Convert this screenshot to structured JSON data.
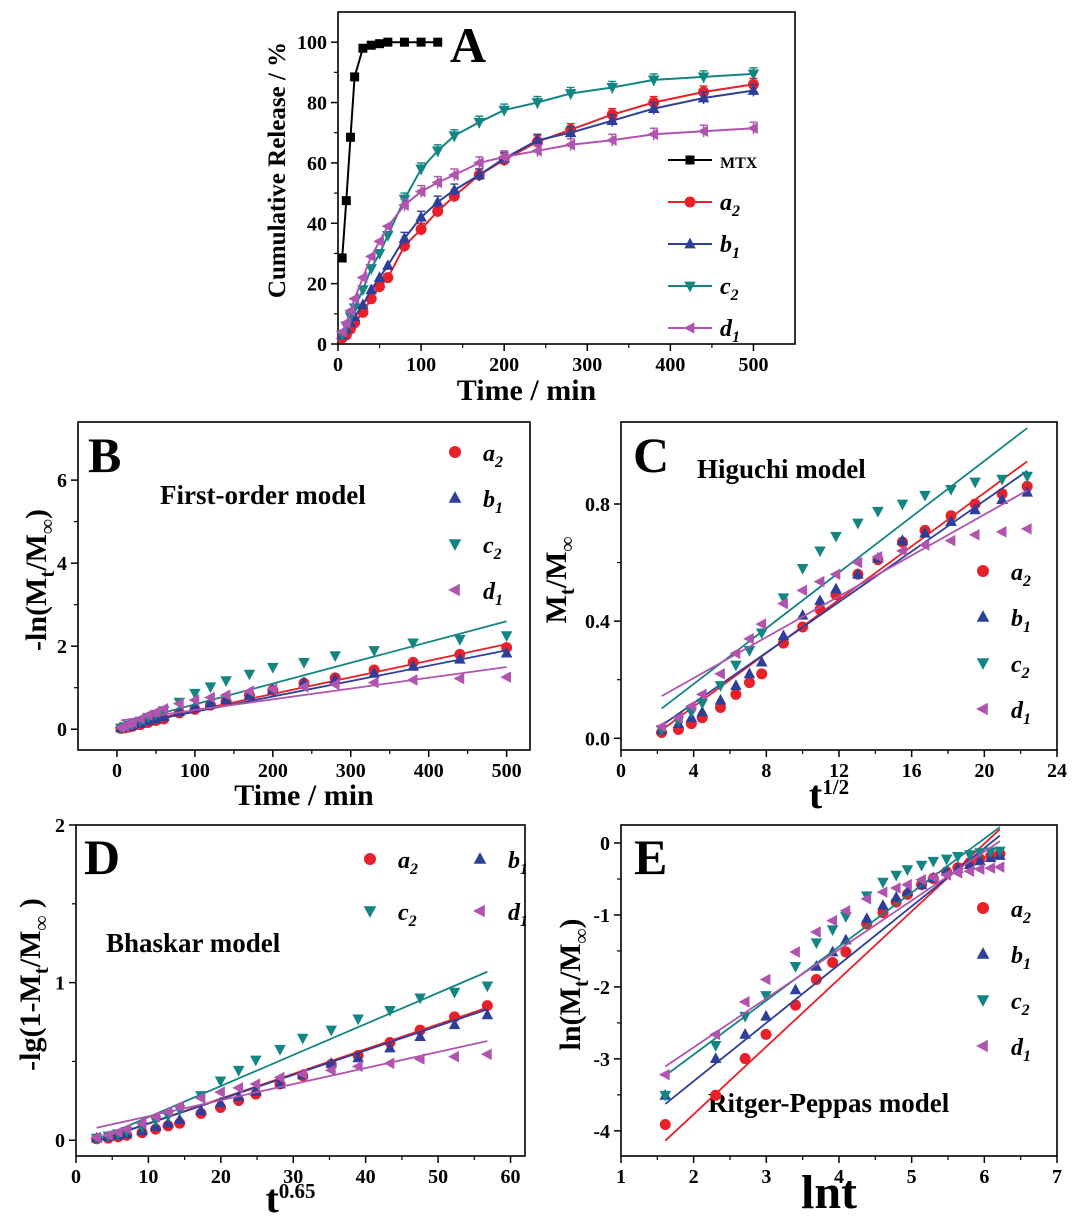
{
  "figure": {
    "colors": {
      "MTX": "#000000",
      "a2": "#e8202a",
      "b1": "#2e3f9a",
      "c2": "#138582",
      "d1": "#b054b0"
    }
  },
  "chart_data": [
    {
      "panel": "A",
      "type": "line",
      "xlabel": "Time / min",
      "ylabel": "Cumulative  Release / %",
      "xlim": [
        0,
        550
      ],
      "ylim": [
        0,
        110
      ],
      "xticks": [
        0,
        100,
        200,
        300,
        400,
        500
      ],
      "yticks": [
        0,
        20,
        40,
        60,
        80,
        100
      ],
      "legend_position": "right",
      "series": [
        {
          "key": "MTX",
          "label": "MTX",
          "sub": "",
          "marker": "square",
          "x": [
            5,
            10,
            15,
            20,
            30,
            40,
            50,
            60,
            80,
            100,
            120
          ],
          "y": [
            28.5,
            47.5,
            68.5,
            88.5,
            98,
            99,
            99.5,
            100,
            100,
            100,
            100
          ]
        },
        {
          "key": "a2",
          "label": "a",
          "sub": "2",
          "marker": "circle",
          "x": [
            5,
            10,
            15,
            20,
            30,
            40,
            50,
            60,
            80,
            100,
            120,
            140,
            170,
            200,
            240,
            280,
            330,
            380,
            440,
            500
          ],
          "y": [
            2,
            3,
            5,
            7,
            10.5,
            15,
            19,
            22,
            32.5,
            38,
            44,
            49,
            56,
            61,
            67,
            71,
            76,
            80,
            83.5,
            86
          ]
        },
        {
          "key": "b1",
          "label": "b",
          "sub": "1",
          "marker": "triangle-up",
          "x": [
            5,
            10,
            15,
            20,
            30,
            40,
            50,
            60,
            80,
            100,
            120,
            140,
            170,
            200,
            240,
            280,
            330,
            380,
            440,
            500
          ],
          "y": [
            3,
            5,
            7,
            9,
            13,
            18,
            22,
            26,
            35,
            42,
            47,
            51,
            56,
            61.5,
            67.5,
            70,
            74,
            78,
            81.5,
            84
          ]
        },
        {
          "key": "c2",
          "label": "c",
          "sub": "2",
          "marker": "triangle-down",
          "x": [
            5,
            10,
            15,
            20,
            30,
            40,
            50,
            60,
            80,
            100,
            120,
            140,
            170,
            200,
            240,
            280,
            330,
            380,
            440,
            500
          ],
          "y": [
            3,
            6,
            9,
            12,
            18,
            25,
            30,
            36,
            48,
            58,
            64,
            69,
            73.5,
            77.5,
            80,
            83,
            85,
            87.5,
            88.5,
            89.5
          ]
        },
        {
          "key": "d1",
          "label": "d",
          "sub": "1",
          "marker": "triangle-left",
          "x": [
            5,
            10,
            15,
            20,
            30,
            40,
            50,
            60,
            80,
            100,
            120,
            140,
            170,
            200,
            240,
            280,
            330,
            380,
            440,
            500
          ],
          "y": [
            4,
            7,
            11,
            15,
            22,
            29,
            34,
            39,
            46,
            50.5,
            53.5,
            56,
            60,
            62,
            64,
            66,
            67.5,
            69.5,
            70.5,
            71.5
          ]
        }
      ]
    },
    {
      "panel": "B",
      "type": "scatter",
      "title": "First-order model",
      "xlabel": "Time / min",
      "ylabel": "-ln(M_t/M_∞)",
      "xlim": [
        -50,
        530
      ],
      "ylim": [
        -0.5,
        7.4
      ],
      "xticks": [
        0,
        100,
        200,
        300,
        400,
        500
      ],
      "yticks": [
        0,
        2,
        4,
        6
      ],
      "legend_position": "top-right",
      "fits": {
        "a2": [
          0.05,
          0.004
        ],
        "b1": [
          0.05,
          0.0037
        ],
        "c2": [
          0.1,
          0.005
        ],
        "d1": [
          0.2,
          0.0026
        ]
      }
    },
    {
      "panel": "C",
      "type": "scatter",
      "title": "Higuchi model",
      "xlabel": "t^1/2",
      "ylabel": "M_t/M_∞",
      "xlim": [
        0,
        24
      ],
      "ylim": [
        -0.04,
        1.08
      ],
      "xticks": [
        0,
        4,
        8,
        12,
        16,
        20,
        24
      ],
      "yticks": [
        0.0,
        0.4,
        0.8
      ],
      "legend_position": "right",
      "fits": {
        "a2": [
          -0.074,
          0.0456
        ],
        "b1": [
          -0.053,
          0.0432
        ],
        "c2": [
          -0.005,
          0.0476
        ],
        "d1": [
          0.066,
          0.0349
        ]
      }
    },
    {
      "panel": "D",
      "type": "scatter",
      "title": "Bhaskar model",
      "xlabel": "t^0.65",
      "ylabel": "-lg(1-M_t/M_∞ )",
      "xlim": [
        0,
        62
      ],
      "ylim": [
        -0.1,
        2
      ],
      "xticks": [
        0,
        10,
        20,
        30,
        40,
        50,
        60
      ],
      "yticks": [
        0,
        1,
        2
      ],
      "legend_position": "top-right",
      "fits": {
        "a2": [
          -0.05,
          0.0157
        ],
        "b1": [
          -0.05,
          0.0155
        ],
        "c2": [
          -0.05,
          0.0197
        ],
        "d1": [
          0.05,
          0.0102
        ]
      }
    },
    {
      "panel": "E",
      "type": "scatter",
      "title": "Ritger-Peppas model",
      "xlabel": "lnt",
      "ylabel": "ln(M_t/M_∞)",
      "xlim": [
        1,
        7
      ],
      "ylim": [
        -4.35,
        0.25
      ],
      "xticks": [
        1,
        2,
        3,
        4,
        5,
        6,
        7
      ],
      "yticks": [
        -4,
        -3,
        -2,
        -1,
        0
      ],
      "legend_position": "right",
      "fits": {
        "a2": [
          -5.65,
          0.94
        ],
        "b1": [
          -4.93,
          0.81
        ],
        "c2": [
          -4.44,
          0.75
        ],
        "d1": [
          -4.2,
          0.68
        ]
      }
    }
  ]
}
